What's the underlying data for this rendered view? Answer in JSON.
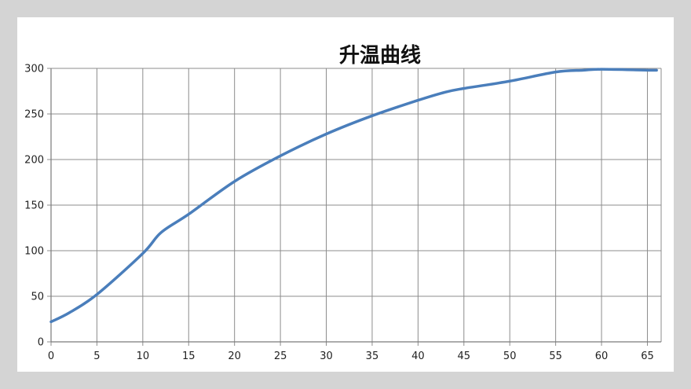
{
  "chart_data": {
    "type": "line",
    "title": "升温曲线",
    "xlabel": "",
    "ylabel": "",
    "xlim": [
      0,
      66.5
    ],
    "ylim": [
      0,
      300
    ],
    "x_ticks": [
      0,
      5,
      10,
      15,
      20,
      25,
      30,
      35,
      40,
      45,
      50,
      55,
      60,
      65
    ],
    "y_ticks": [
      0,
      50,
      100,
      150,
      200,
      250,
      300
    ],
    "grid": true,
    "legend": "none",
    "series": [
      {
        "color": "#4a7ebb",
        "x": [
          0,
          2,
          5,
          10,
          12,
          15,
          20,
          25,
          30,
          35,
          40,
          43,
          45,
          50,
          55,
          58,
          60,
          65,
          66
        ],
        "y": [
          22,
          32,
          52,
          97,
          120,
          140,
          176,
          204,
          228,
          248,
          265,
          274,
          278,
          286,
          296,
          298,
          299,
          298,
          298
        ]
      }
    ]
  }
}
